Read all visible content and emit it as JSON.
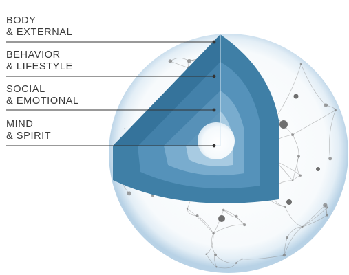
{
  "layers": [
    {
      "line1": "BODY",
      "line2": "& EXTERNAL"
    },
    {
      "line1": "BEHAVIOR",
      "line2": "& LIFESTYLE"
    },
    {
      "line1": "SOCIAL",
      "line2": "& EMOTIONAL"
    },
    {
      "line1": "MIND",
      "line2": "& SPIRIT"
    }
  ],
  "colors": {
    "label_text": "#3a3a3a",
    "leader_line": "#333333",
    "layer_outer": "#3f7fa6",
    "layer_behavior": "#5592ba",
    "layer_social": "#79acce",
    "layer_mind": "#a8cbe2",
    "core": "#ffffff",
    "sphere_edge": "#b8d2e6",
    "network": "#8a8a8a"
  }
}
